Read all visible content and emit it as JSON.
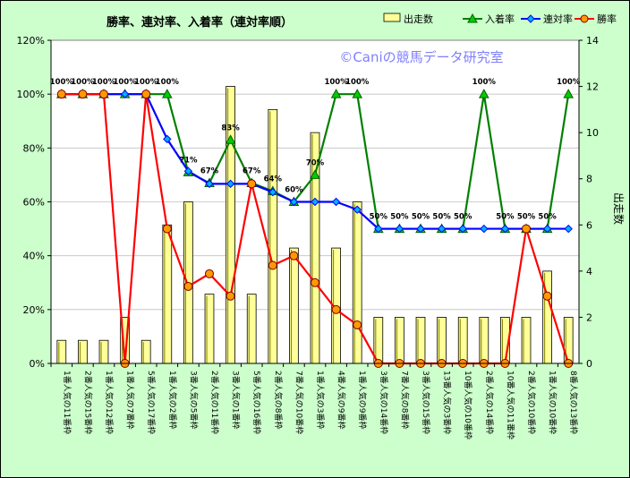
{
  "chart_data": {
    "type": "bar+line",
    "title": "勝率、連対率、入着率（連対率順）",
    "watermark": "©Caniの競馬データ研究室",
    "categories": [
      "1番人気の11番枠",
      "2番人気の15番枠",
      "1番人気の12番枠",
      "1番人気の7番枠",
      "5番人気の17番枠",
      "1番人気の2番枠",
      "3番人気の5番枠",
      "2番人気の11番枠",
      "3番人気の1番枠",
      "5番人気の16番枠",
      "2番人気の8番枠",
      "7番人気の10番枠",
      "1番人気の3番枠",
      "4番人気の9番枠",
      "1番人気の9番枠",
      "3番人気の14番枠",
      "7番人気の8番枠",
      "3番人気の15番枠",
      "13番人気の3番枠",
      "10番人気の10番枠",
      "2番人気の14番枠",
      "10番人気の11番枠",
      "2番人気の10番枠",
      "1番人気の10番枠",
      "8番人気の13番枠"
    ],
    "y_left": {
      "ticks": [
        "0%",
        "20%",
        "40%",
        "60%",
        "80%",
        "100%",
        "120%"
      ],
      "range": [
        0,
        120
      ]
    },
    "y_right": {
      "label": "出走数",
      "ticks": [
        "0",
        "2",
        "4",
        "6",
        "8",
        "10",
        "12",
        "14"
      ],
      "range": [
        0,
        14
      ]
    },
    "legend": [
      "出走数",
      "入着率",
      "連対率",
      "勝率"
    ],
    "legend_position": "top-right",
    "series": [
      {
        "name": "出走数",
        "type": "bar",
        "axis": "right",
        "color": "#ffff99",
        "values": [
          1,
          1,
          1,
          2,
          1,
          6,
          7,
          3,
          12,
          3,
          11,
          5,
          10,
          5,
          7,
          2,
          2,
          2,
          2,
          2,
          2,
          2,
          2,
          4,
          2
        ]
      },
      {
        "name": "入着率",
        "type": "line",
        "axis": "left",
        "color": "#008000",
        "values": [
          100,
          100,
          100,
          100,
          100,
          100,
          71,
          67,
          83,
          67,
          64,
          60,
          70,
          100,
          100,
          50,
          50,
          50,
          50,
          50,
          100,
          50,
          50,
          50,
          100
        ]
      },
      {
        "name": "連対率",
        "type": "line",
        "axis": "left",
        "color": "#0000ff",
        "values": [
          100,
          100,
          100,
          100,
          100,
          83.3,
          71.4,
          66.7,
          66.7,
          66.7,
          63.6,
          60,
          60,
          60,
          57.1,
          50,
          50,
          50,
          50,
          50,
          50,
          50,
          50,
          50,
          50
        ]
      },
      {
        "name": "勝率",
        "type": "line",
        "axis": "left",
        "color": "#ff0000",
        "values": [
          100,
          100,
          100,
          0,
          100,
          50,
          28.6,
          33.3,
          25,
          66.7,
          36.4,
          40,
          30,
          20,
          14.3,
          0,
          0,
          0,
          0,
          0,
          0,
          0,
          50,
          25,
          0
        ]
      }
    ],
    "data_labels": [
      "100%",
      "100%",
      "100%",
      "100%",
      "100%",
      "100%",
      "71%",
      "67%",
      "83%",
      "67%",
      "64%",
      "60%",
      "70%",
      "100%",
      "100%",
      "50%",
      "50%",
      "50%",
      "50%",
      "50%",
      "100%",
      "50%",
      "50%",
      "50%",
      "100%"
    ]
  }
}
